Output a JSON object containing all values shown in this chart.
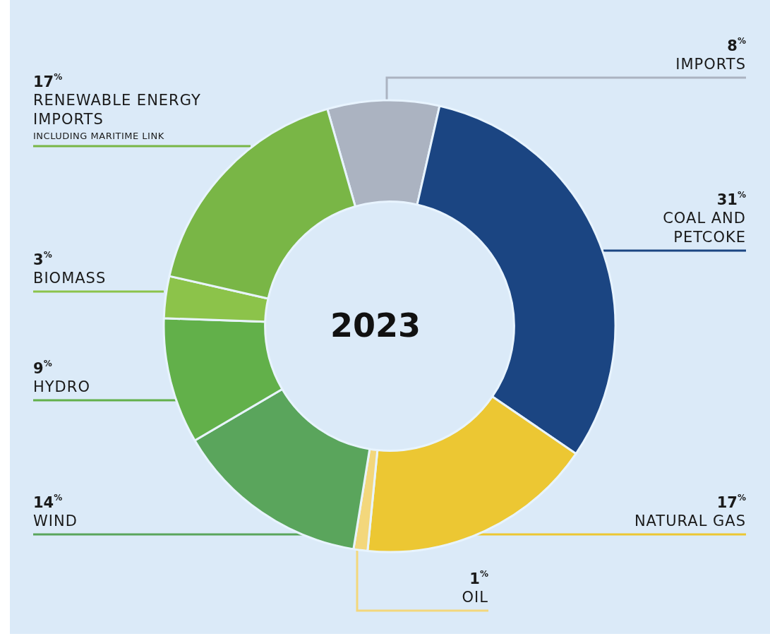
{
  "chart_data": {
    "type": "donut",
    "title": "2023",
    "categories": [
      "IMPORTS",
      "COAL AND PETCOKE",
      "NATURAL GAS",
      "OIL",
      "WIND",
      "HYDRO",
      "BIOMASS",
      "RENEWABLE ENERGY IMPORTS"
    ],
    "values": [
      8,
      31,
      17,
      1,
      14,
      9,
      3,
      17
    ],
    "colors": [
      "#abb3c1",
      "#1b4582",
      "#ecc733",
      "#f3d77c",
      "#5aa55c",
      "#62b04a",
      "#8cc34a",
      "#79b646"
    ],
    "value_labels": [
      "8$^{%}$",
      "31$^{%}$",
      "17$^{%}$",
      "1$^{%}$",
      "14$^{%}$",
      "9$^{%}$",
      "3$^{%}$",
      "17$^{%}$"
    ],
    "annotations": [
      "INCLUDING MARITIME LINK"
    ],
    "legend": false
  }
}
